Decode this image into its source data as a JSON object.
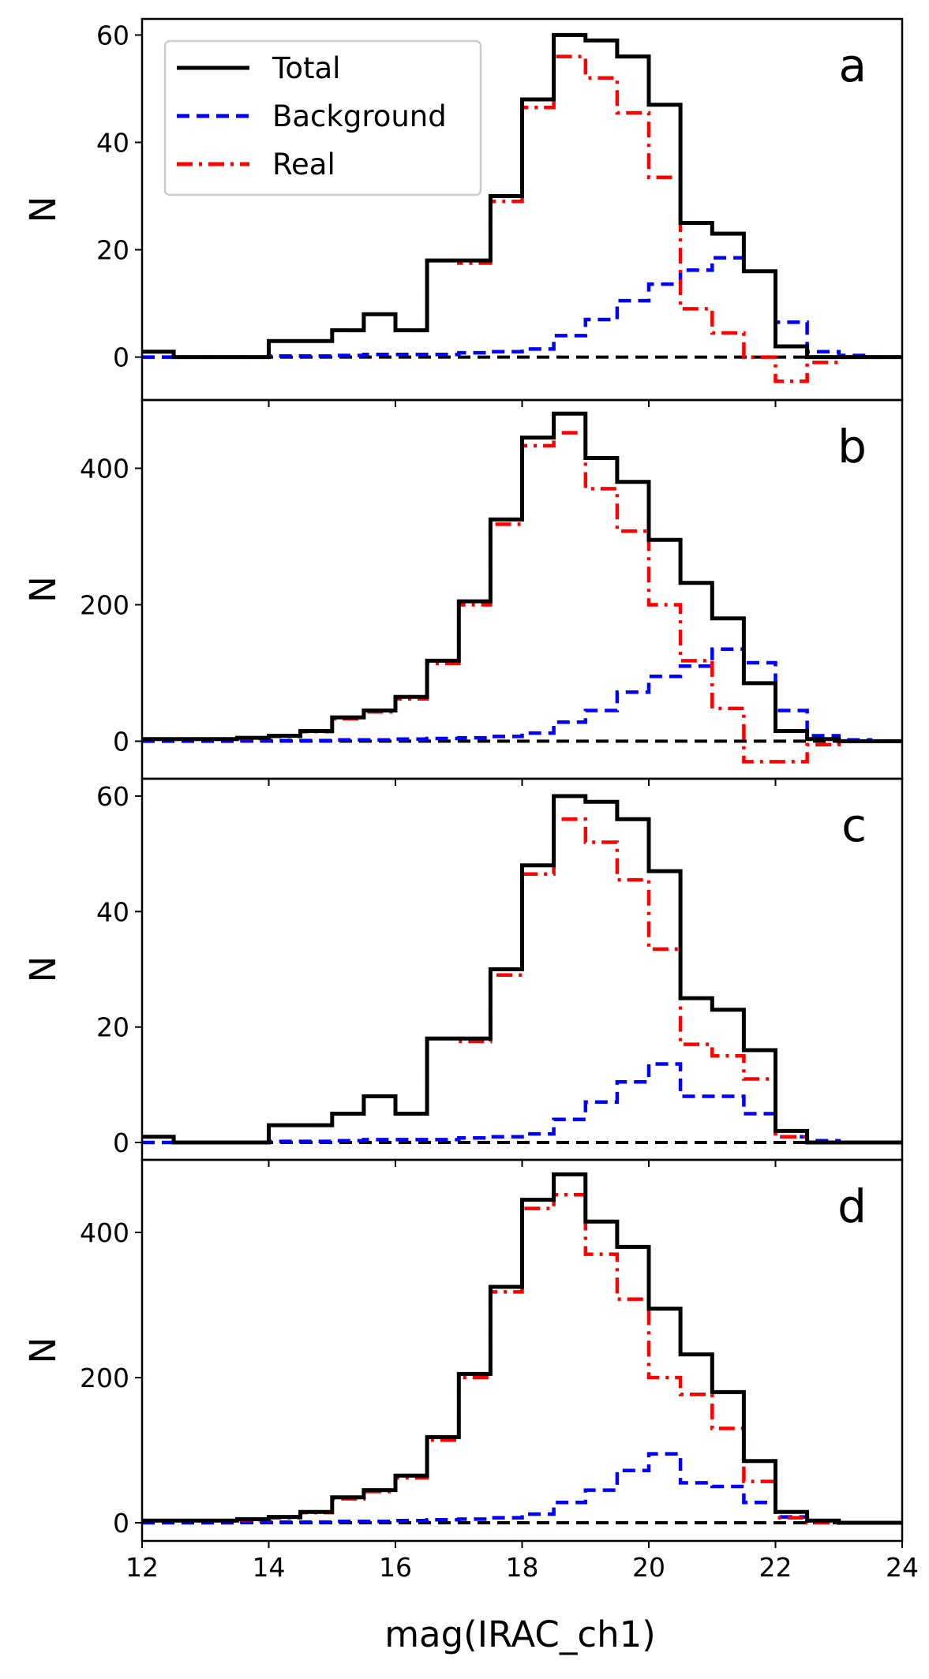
{
  "chart_data": {
    "type": "step",
    "xlabel": "mag(IRAC_ch1)",
    "ylabel": "N",
    "xlim": [
      12,
      24
    ],
    "xticks": [
      12,
      14,
      16,
      18,
      20,
      22,
      24
    ],
    "bin_edges": [
      12,
      12.5,
      13,
      13.5,
      14,
      14.5,
      15,
      15.5,
      16,
      16.5,
      17,
      17.5,
      18,
      18.5,
      19,
      19.5,
      20,
      20.5,
      21,
      21.5,
      22,
      22.5,
      23,
      23.5,
      24
    ],
    "colors": {
      "Total": "#000000",
      "Background": "#0000ff",
      "Real": "#ff0000",
      "zero_line": "#000000"
    },
    "legend": {
      "location": "top-left",
      "entries": [
        "Total",
        "Background",
        "Real"
      ]
    },
    "panels": [
      {
        "label": "a",
        "ylim": [
          -8,
          63
        ],
        "yticks": [
          0,
          20,
          40,
          60
        ],
        "series": [
          {
            "name": "Total",
            "style": "solid",
            "values": [
              1,
              0,
              0,
              0,
              3,
              3,
              5,
              8,
              5,
              18,
              18,
              30,
              48,
              60,
              59,
              56,
              47,
              25,
              23,
              16,
              2,
              0,
              0,
              0
            ]
          },
          {
            "name": "Background",
            "style": "dashed",
            "values": [
              0,
              0,
              0,
              0,
              0.2,
              0.2,
              0.3,
              0.5,
              0.5,
              0.5,
              0.8,
              1,
              1.5,
              4,
              7,
              10.5,
              13.6,
              16.2,
              18.5,
              16,
              6.5,
              1,
              0.3,
              0
            ]
          },
          {
            "name": "Real",
            "style": "dashdot",
            "values": [
              1,
              0,
              0,
              0,
              3,
              3,
              5,
              8,
              5,
              18,
              17.5,
              29,
              46.5,
              56,
              52,
              45.5,
              33.5,
              9,
              4.5,
              0,
              -4.5,
              -1,
              0,
              0
            ]
          }
        ]
      },
      {
        "label": "b",
        "ylim": [
          -55,
          500
        ],
        "yticks": [
          0,
          200,
          400
        ],
        "series": [
          {
            "name": "Total",
            "style": "solid",
            "values": [
              3,
              3,
              3,
              5,
              8,
              15,
              35,
              45,
              65,
              118,
              205,
              325,
              445,
              480,
              415,
              380,
              295,
              232,
              180,
              85,
              15,
              3,
              0,
              0
            ]
          },
          {
            "name": "Background",
            "style": "dashed",
            "values": [
              0,
              0,
              0,
              1,
              1,
              1,
              2,
              2,
              3,
              4,
              5,
              7,
              12,
              28,
              45,
              72,
              95,
              110,
              135,
              115,
              45,
              8,
              2,
              0
            ]
          },
          {
            "name": "Real",
            "style": "dashdot",
            "values": [
              3,
              3,
              3,
              4,
              7,
              14,
              33,
              43,
              62,
              114,
              200,
              318,
              433,
              452,
              370,
              308,
              200,
              118,
              48,
              -30,
              -30,
              -5,
              0,
              0
            ]
          }
        ]
      },
      {
        "label": "c",
        "ylim": [
          -3,
          63
        ],
        "yticks": [
          0,
          20,
          40,
          60
        ],
        "series": [
          {
            "name": "Total",
            "style": "solid",
            "values": [
              1,
              0,
              0,
              0,
              3,
              3,
              5,
              8,
              5,
              18,
              18,
              30,
              48,
              60,
              59,
              56,
              47,
              25,
              23,
              16,
              2,
              0,
              0,
              0
            ]
          },
          {
            "name": "Background",
            "style": "dashed",
            "values": [
              0,
              0,
              0,
              0,
              0.2,
              0.2,
              0.3,
              0.5,
              0.5,
              0.5,
              0.8,
              1,
              1.5,
              4,
              7,
              10.5,
              13.6,
              8,
              8,
              5,
              1,
              0.3,
              0,
              0
            ]
          },
          {
            "name": "Real",
            "style": "dashdot",
            "values": [
              1,
              0,
              0,
              0,
              3,
              3,
              5,
              8,
              5,
              18,
              17.5,
              29,
              46.5,
              56,
              52,
              45.5,
              33.5,
              17,
              15,
              11,
              1,
              0,
              0,
              0
            ]
          }
        ]
      },
      {
        "label": "d",
        "ylim": [
          -25,
          500
        ],
        "yticks": [
          0,
          200,
          400
        ],
        "series": [
          {
            "name": "Total",
            "style": "solid",
            "values": [
              3,
              3,
              3,
              5,
              8,
              15,
              35,
              45,
              65,
              118,
              205,
              325,
              445,
              480,
              415,
              380,
              295,
              232,
              180,
              85,
              15,
              3,
              0,
              0
            ]
          },
          {
            "name": "Background",
            "style": "dashed",
            "values": [
              0,
              0,
              0,
              1,
              1,
              1,
              2,
              2,
              3,
              4,
              5,
              7,
              12,
              28,
              45,
              72,
              95,
              55,
              50,
              28,
              8,
              3,
              0,
              0
            ]
          },
          {
            "name": "Real",
            "style": "dashdot",
            "values": [
              3,
              3,
              3,
              4,
              7,
              14,
              33,
              43,
              62,
              114,
              200,
              318,
              433,
              452,
              370,
              308,
              200,
              177,
              130,
              57,
              7,
              0,
              0,
              0
            ]
          }
        ]
      }
    ]
  }
}
